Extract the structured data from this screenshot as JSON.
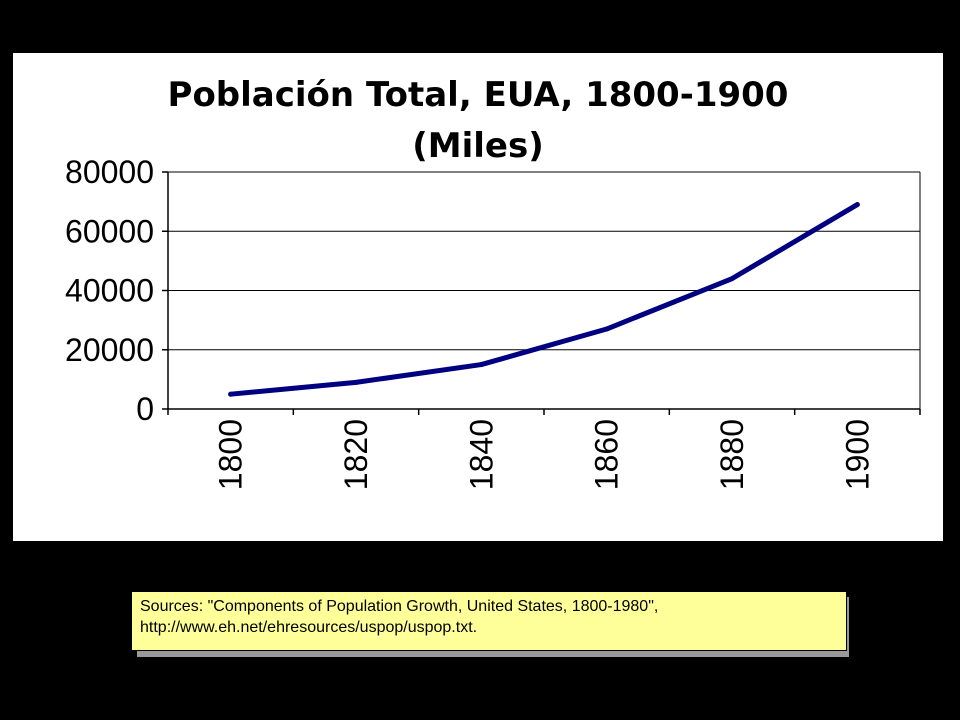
{
  "chart_data": {
    "type": "line",
    "title": "Población Total, EUA, 1800-1900",
    "subtitle": "(Miles)",
    "xlabel": "",
    "ylabel": "",
    "categories": [
      "1800",
      "1820",
      "1840",
      "1860",
      "1880",
      "1900"
    ],
    "y_ticks": [
      "0",
      "20000",
      "40000",
      "60000",
      "80000"
    ],
    "ylim": [
      0,
      80000
    ],
    "grid": true,
    "legend": "none",
    "series": [
      {
        "values": [
          5000,
          9000,
          15000,
          27000,
          44000,
          69000
        ],
        "color": "#000080"
      }
    ]
  },
  "sources_note": "Sources:  \"Components of Population Growth, United States, 1800-1980\", http://www.eh.net/ehresources/uspop/uspop.txt."
}
